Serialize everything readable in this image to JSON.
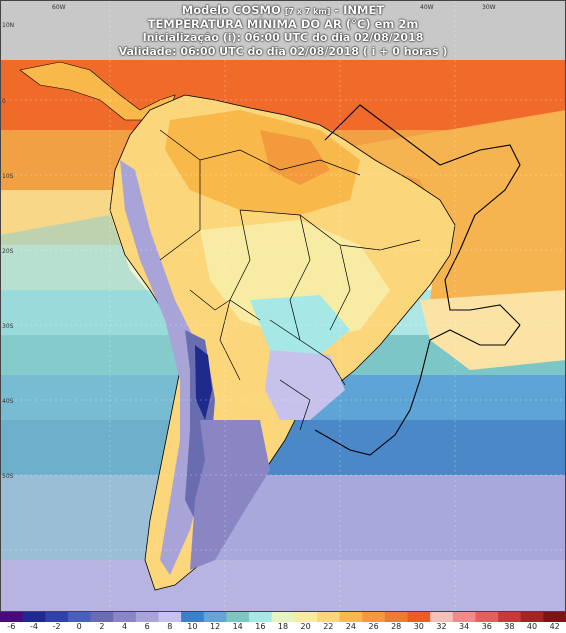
{
  "header": {
    "model_prefix": "Modelo COSMO ",
    "model_resolution": "[7 x 7 km]",
    "model_suffix": " - INMET",
    "variable": "TEMPERATURA MÍNIMA DO AR (°C) em 2m",
    "initialization": "Inicialização (i): 06:00 UTC do dia 02/08/2018",
    "validity": "Validade: 06:00 UTC do dia 02/08/2018 ( i + 0 horas )"
  },
  "map_ticks": {
    "longitudes": [
      "60W",
      "40W",
      "30W"
    ],
    "latitudes": [
      "10N",
      "0",
      "10S",
      "20S",
      "30S",
      "40S",
      "50S"
    ]
  },
  "legend": {
    "labels": [
      "-6",
      "-4",
      "-2",
      "0",
      "2",
      "4",
      "6",
      "8",
      "10",
      "12",
      "14",
      "16",
      "18",
      "20",
      "22",
      "24",
      "26",
      "28",
      "30",
      "32",
      "34",
      "36",
      "38",
      "40",
      "42"
    ],
    "colors": [
      "#4a0a78",
      "#1e2b8c",
      "#3042a8",
      "#4860b8",
      "#6a6cb0",
      "#8a86c4",
      "#a8a4d8",
      "#c6c2ec",
      "#3e80c6",
      "#66a4d6",
      "#7cc6c4",
      "#a6e8e6",
      "#e6f4c4",
      "#f8eca4",
      "#fcd67a",
      "#f8b84a",
      "#f39a3c",
      "#f07a30",
      "#f05a24",
      "#f4c0bc",
      "#ee8c8c",
      "#e4605e",
      "#c83a3a",
      "#a62424",
      "#7a1616"
    ]
  },
  "colors": {
    "water_gray": "#c8c8c8",
    "border": "#000000"
  }
}
